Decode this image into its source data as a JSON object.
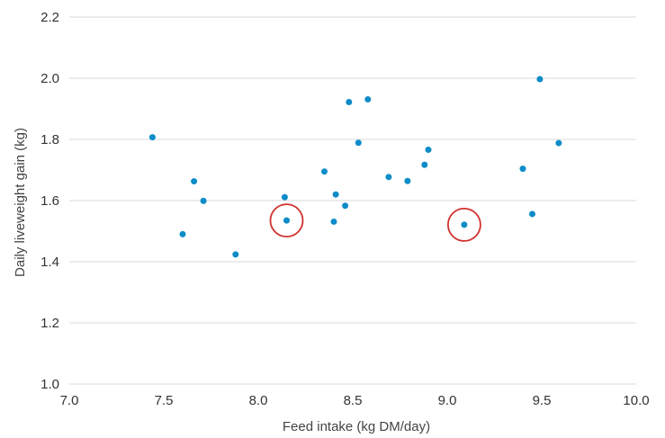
{
  "chart_data": {
    "type": "scatter",
    "title": "",
    "xlabel": "Feed intake (kg DM/day)",
    "ylabel": "Daily liveweight gain (kg)",
    "xlim": [
      7.0,
      10.0
    ],
    "ylim": [
      1.0,
      2.2
    ],
    "x_ticks": [
      "7.0",
      "7.5",
      "8.0",
      "8.5",
      "9.0",
      "9.5",
      "10.0"
    ],
    "y_ticks": [
      "1.0",
      "1.2",
      "1.4",
      "1.6",
      "1.8",
      "2.0",
      "2.2"
    ],
    "grid": "horizontal",
    "point_color": "#0e8cc8",
    "highlight_color": "#d0312d",
    "gridline_color": "#d9d9d9",
    "points": [
      {
        "x": 7.44,
        "y": 1.807
      },
      {
        "x": 7.6,
        "y": 1.49
      },
      {
        "x": 7.66,
        "y": 1.663
      },
      {
        "x": 7.71,
        "y": 1.599
      },
      {
        "x": 7.88,
        "y": 1.424
      },
      {
        "x": 8.14,
        "y": 1.611
      },
      {
        "x": 8.15,
        "y": 1.535
      },
      {
        "x": 8.35,
        "y": 1.695
      },
      {
        "x": 8.4,
        "y": 1.531
      },
      {
        "x": 8.41,
        "y": 1.62
      },
      {
        "x": 8.46,
        "y": 1.583
      },
      {
        "x": 8.48,
        "y": 1.922
      },
      {
        "x": 8.53,
        "y": 1.789
      },
      {
        "x": 8.58,
        "y": 1.931
      },
      {
        "x": 8.69,
        "y": 1.677
      },
      {
        "x": 8.79,
        "y": 1.664
      },
      {
        "x": 8.88,
        "y": 1.717
      },
      {
        "x": 8.9,
        "y": 1.766
      },
      {
        "x": 9.09,
        "y": 1.521
      },
      {
        "x": 9.4,
        "y": 1.704
      },
      {
        "x": 9.45,
        "y": 1.556
      },
      {
        "x": 9.49,
        "y": 1.997
      },
      {
        "x": 9.59,
        "y": 1.788
      }
    ],
    "highlighted_points": [
      {
        "x": 8.15,
        "y": 1.535
      },
      {
        "x": 9.09,
        "y": 1.521
      }
    ]
  }
}
